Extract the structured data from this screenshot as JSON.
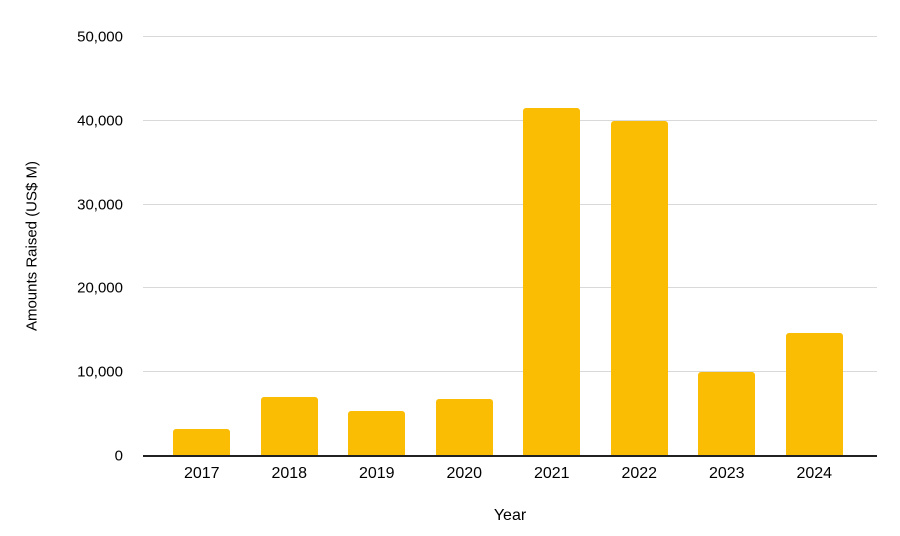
{
  "chart_data": {
    "type": "bar",
    "title": "",
    "xlabel": "Year",
    "ylabel": "Amounts Raised (US$ M)",
    "categories": [
      "2017",
      "2018",
      "2019",
      "2020",
      "2021",
      "2022",
      "2023",
      "2024"
    ],
    "values": [
      3200,
      7000,
      5400,
      6800,
      41500,
      40000,
      10000,
      14700
    ],
    "ylim": [
      0,
      50000
    ],
    "ytick_values": [
      0,
      10000,
      20000,
      30000,
      40000,
      50000
    ],
    "ytick_labels": [
      "0",
      "10,000",
      "20,000",
      "30,000",
      "40,000",
      "50,000"
    ],
    "bar_color": "#FBBC04",
    "gridline_color": "#D9D9D9",
    "axis_line_color": "#212121",
    "text_color": "#000000",
    "background": "#FFFFFF",
    "grid": true,
    "legend": "none"
  }
}
